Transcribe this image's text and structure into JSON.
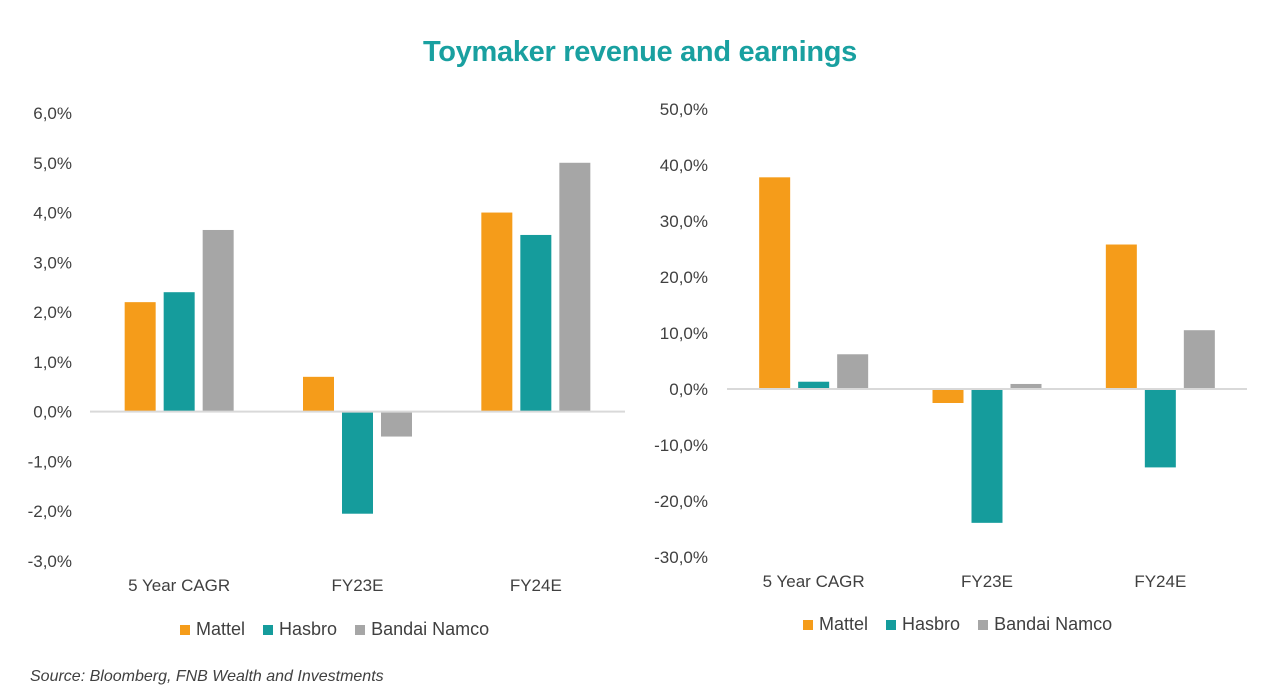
{
  "title": "Toymaker revenue and earnings",
  "source": "Source: Bloomberg, FNB Wealth and Investments",
  "colors": {
    "Mattel": "#f59c1a",
    "Hasbro": "#159c9c",
    "Bandai Namco": "#a6a6a6",
    "title": "#19a0a0"
  },
  "chart_data": [
    {
      "type": "bar",
      "title": "",
      "xlabel": "",
      "ylabel": "",
      "categories": [
        "5 Year CAGR",
        "FY23E",
        "FY24E"
      ],
      "series": [
        {
          "name": "Mattel",
          "values": [
            2.2,
            0.7,
            4.0
          ]
        },
        {
          "name": "Hasbro",
          "values": [
            2.4,
            -2.05,
            3.55
          ]
        },
        {
          "name": "Bandai Namco",
          "values": [
            3.65,
            -0.5,
            5.0
          ]
        }
      ],
      "ylim": [
        -3,
        6
      ],
      "yticks": [
        6,
        5,
        4,
        3,
        2,
        1,
        0,
        -1,
        -2,
        -3
      ],
      "ytick_labels": [
        "6,0%",
        "5,0%",
        "4,0%",
        "3,0%",
        "2,0%",
        "1,0%",
        "0,0%",
        "-1,0%",
        "-2,0%",
        "-3,0%"
      ],
      "grid": false,
      "legend": "bottom"
    },
    {
      "type": "bar",
      "title": "",
      "xlabel": "",
      "ylabel": "",
      "categories": [
        "5 Year CAGR",
        "FY23E",
        "FY24E"
      ],
      "series": [
        {
          "name": "Mattel",
          "values": [
            37.8,
            -2.5,
            25.8
          ]
        },
        {
          "name": "Hasbro",
          "values": [
            1.3,
            -23.9,
            -14.0
          ]
        },
        {
          "name": "Bandai Namco",
          "values": [
            6.2,
            0.9,
            10.5
          ]
        }
      ],
      "ylim": [
        -30,
        50
      ],
      "yticks": [
        50,
        40,
        30,
        20,
        10,
        0,
        -10,
        -20,
        -30
      ],
      "ytick_labels": [
        "50,0%",
        "40,0%",
        "30,0%",
        "20,0%",
        "10,0%",
        "0,0%",
        "-10,0%",
        "-20,0%",
        "-30,0%"
      ],
      "grid": false,
      "legend": "bottom"
    }
  ]
}
